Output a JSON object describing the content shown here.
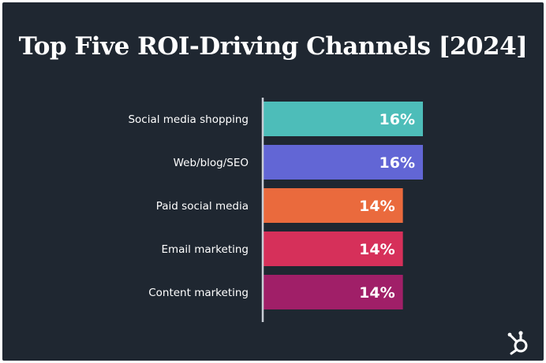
{
  "chart_data": {
    "type": "bar",
    "orientation": "horizontal",
    "title": "Top Five ROI-Driving Channels [2024]",
    "categories": [
      "Social media shopping",
      "Web/blog/SEO",
      "Paid social media",
      "Email marketing",
      "Content marketing"
    ],
    "values": [
      16,
      16,
      14,
      14,
      14
    ],
    "value_labels": [
      "16%",
      "16%",
      "14%",
      "14%",
      "14%"
    ],
    "colors": [
      "#4dbdb9",
      "#6266d5",
      "#ea6a3d",
      "#d6305a",
      "#a01f68"
    ],
    "xlim": [
      0,
      16
    ],
    "xlabel": "",
    "ylabel": "",
    "grid": false
  },
  "colors": {
    "background": "#1f2731",
    "text": "#ffffff",
    "axis": "#c9ced6"
  },
  "logo": {
    "icon": "hubspot-sprocket-icon"
  }
}
